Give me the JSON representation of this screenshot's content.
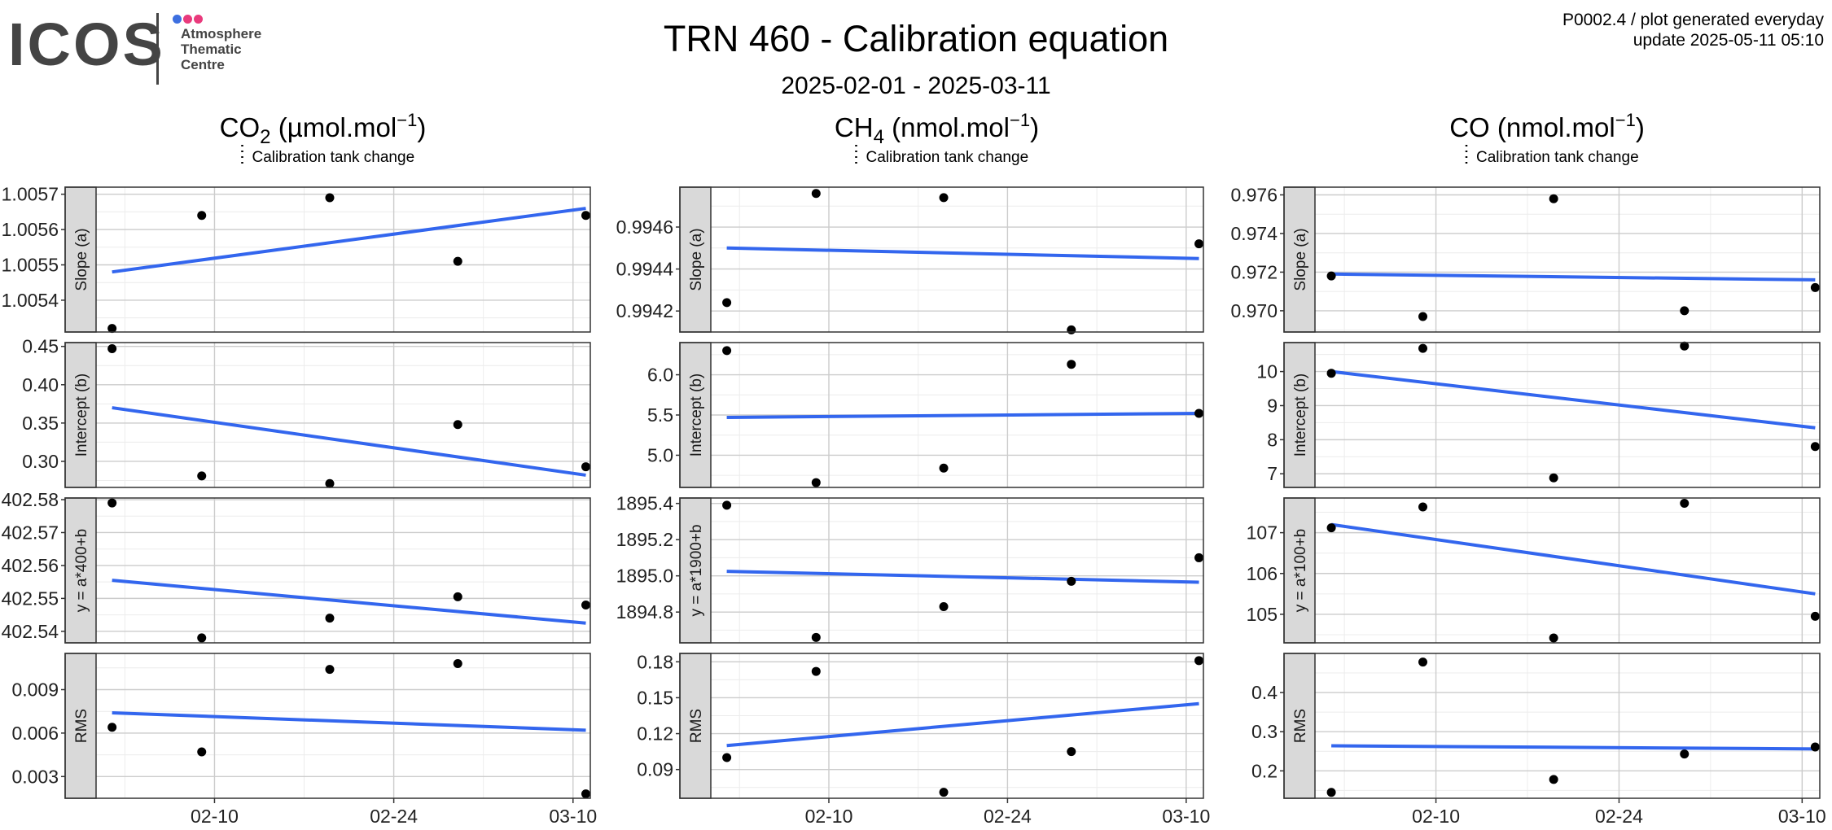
{
  "header": {
    "logo_text": "ICOS",
    "logo_subtitle": [
      "Atmosphere",
      "Thematic",
      "Centre"
    ],
    "logo_dot_colors": [
      "#3d6fe0",
      "#e93a7c",
      "#e93a7c"
    ],
    "title": "TRN 460 - Calibration equation",
    "subtitle": "2025-02-01 - 2025-03-11",
    "corner_line1": "P0002.4 / plot generated everyday",
    "corner_line2": "update  2025-05-11 05:10"
  },
  "colors": {
    "fit_line": "#3366ee",
    "points": "#000000",
    "strip_fill": "#d9d9d9",
    "grid_major": "#cccccc",
    "grid_minor": "#ececec"
  },
  "legend_label": "Calibration tank change",
  "row_labels": [
    "Slope (a)",
    "Intercept (b)",
    "y = a*400+b",
    "RMS"
  ],
  "chart_data": [
    {
      "type": "scatter",
      "column_title": {
        "species": "CO",
        "subscript": "2",
        "unit": "(µmol.mol",
        "exponent": "−1"
      },
      "x_dates": [
        "2025-02-02",
        "2025-02-09",
        "2025-02-19",
        "2025-03-01",
        "2025-03-11"
      ],
      "x_ticks": [
        "02-10",
        "02-24",
        "03-10"
      ],
      "panels": [
        {
          "label": "Slope (a)",
          "y": [
            1.00532,
            1.00564,
            1.00569,
            1.00551,
            1.00564
          ],
          "fit": [
            1.00548,
            1.00566
          ],
          "ylim": [
            1.00531,
            1.00572
          ],
          "ticks": [
            "1.0054",
            "1.0055",
            "1.0056",
            "1.0057"
          ]
        },
        {
          "label": "Intercept (b)",
          "y": [
            0.447,
            0.281,
            0.271,
            0.348,
            0.293
          ],
          "fit": [
            0.37,
            0.282
          ],
          "ylim": [
            0.266,
            0.455
          ],
          "ticks": [
            "0.30",
            "0.35",
            "0.40",
            "0.45"
          ]
        },
        {
          "label": "y = a*400+b",
          "y": [
            402.579,
            402.538,
            402.544,
            402.5505,
            402.548
          ],
          "fit": [
            402.5555,
            402.5425
          ],
          "ylim": [
            402.5365,
            402.5805
          ],
          "ticks": [
            "402.54",
            "402.55",
            "402.56",
            "402.57",
            "402.58"
          ]
        },
        {
          "label": "RMS",
          "y": [
            0.0064,
            0.0047,
            0.0104,
            0.0108,
            0.0018
          ],
          "fit": [
            0.0074,
            0.0062
          ],
          "ylim": [
            0.0015,
            0.0115
          ],
          "ticks": [
            "0.003",
            "0.006",
            "0.009"
          ]
        }
      ]
    },
    {
      "type": "scatter",
      "column_title": {
        "species": "CH",
        "subscript": "4",
        "unit": "(nmol.mol",
        "exponent": "−1"
      },
      "x_dates": [
        "2025-02-02",
        "2025-02-09",
        "2025-02-19",
        "2025-03-01",
        "2025-03-11"
      ],
      "x_ticks": [
        "02-10",
        "02-24",
        "03-10"
      ],
      "panels": [
        {
          "label": "Slope (a)",
          "y": [
            0.99424,
            0.99476,
            0.99474,
            0.99411,
            0.99452
          ],
          "fit": [
            0.9945,
            0.99445
          ],
          "ylim": [
            0.9941,
            0.99479
          ],
          "ticks": [
            "0.9942",
            "0.9944",
            "0.9946"
          ]
        },
        {
          "label": "Intercept (b)",
          "y": [
            6.3,
            4.66,
            4.84,
            6.13,
            5.52
          ],
          "fit": [
            5.47,
            5.52
          ],
          "ylim": [
            4.6,
            6.4
          ],
          "ticks": [
            "5.0",
            "5.5",
            "6.0"
          ]
        },
        {
          "label": "y = a*1900+b",
          "y": [
            1895.39,
            1894.66,
            1894.83,
            1894.97,
            1895.1
          ],
          "fit": [
            1895.025,
            1894.965
          ],
          "ylim": [
            1894.63,
            1895.43
          ],
          "ticks": [
            "1894.8",
            "1895.0",
            "1895.2",
            "1895.4"
          ]
        },
        {
          "label": "RMS",
          "y": [
            0.1,
            0.172,
            0.071,
            0.105,
            0.181
          ],
          "fit": [
            0.11,
            0.145
          ],
          "ylim": [
            0.066,
            0.187
          ],
          "ticks": [
            "0.09",
            "0.12",
            "0.15",
            "0.18"
          ]
        }
      ]
    },
    {
      "type": "scatter",
      "column_title": {
        "species": "CO",
        "subscript": "",
        "unit": "(nmol.mol",
        "exponent": "−1"
      },
      "x_dates": [
        "2025-02-02",
        "2025-02-09",
        "2025-02-19",
        "2025-03-01",
        "2025-03-11"
      ],
      "x_ticks": [
        "02-10",
        "02-24",
        "03-10"
      ],
      "panels": [
        {
          "label": "Slope (a)",
          "y": [
            0.9718,
            0.9697,
            0.9758,
            0.97,
            0.9712
          ],
          "fit": [
            0.9719,
            0.9716
          ],
          "ylim": [
            0.9689,
            0.9764
          ],
          "ticks": [
            "0.970",
            "0.972",
            "0.974",
            "0.976"
          ]
        },
        {
          "label": "Intercept (b)",
          "y": [
            9.95,
            10.68,
            6.88,
            10.75,
            7.8
          ],
          "fit": [
            10.0,
            8.35
          ],
          "ylim": [
            6.6,
            10.85
          ],
          "ticks": [
            "7",
            "8",
            "9",
            "10"
          ]
        },
        {
          "label": "y = a*100+b",
          "y": [
            107.12,
            107.63,
            104.42,
            107.72,
            104.95
          ],
          "fit": [
            107.2,
            105.5
          ],
          "ylim": [
            104.3,
            107.85
          ],
          "ticks": [
            "105",
            "106",
            "107"
          ]
        },
        {
          "label": "RMS",
          "y": [
            0.145,
            0.478,
            0.178,
            0.243,
            0.261
          ],
          "fit": [
            0.264,
            0.256
          ],
          "ylim": [
            0.13,
            0.5
          ],
          "ticks": [
            "0.2",
            "0.3",
            "0.4"
          ]
        }
      ]
    }
  ]
}
